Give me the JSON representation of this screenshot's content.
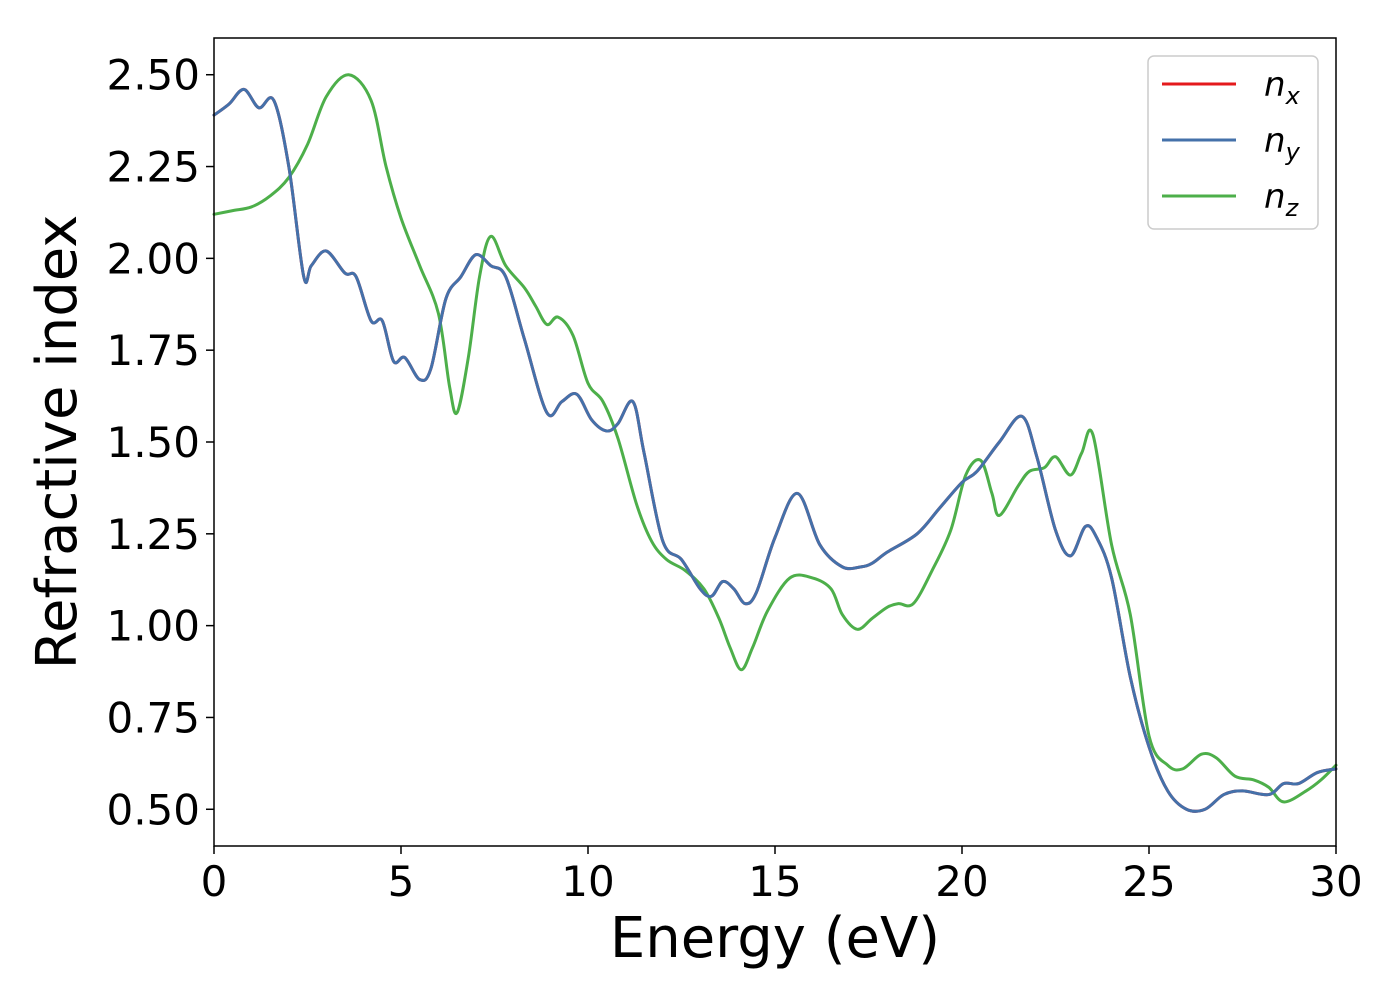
{
  "chart_data": {
    "type": "line",
    "xlabel": "Energy (eV)",
    "ylabel": "Refractive index",
    "xlim": [
      0,
      30
    ],
    "ylim": [
      0.4,
      2.6
    ],
    "xticks": [
      0,
      5,
      10,
      15,
      20,
      25,
      30
    ],
    "xtick_labels": [
      "0",
      "5",
      "10",
      "15",
      "20",
      "25",
      "30"
    ],
    "yticks": [
      0.5,
      0.75,
      1.0,
      1.25,
      1.5,
      1.75,
      2.0,
      2.25,
      2.5
    ],
    "ytick_labels": [
      "0.50",
      "0.75",
      "1.00",
      "1.25",
      "1.50",
      "1.75",
      "2.00",
      "2.25",
      "2.50"
    ],
    "grid": false,
    "legend_position": "top-right",
    "series": [
      {
        "name": "n_x",
        "legend_main": "n",
        "legend_sub": "x",
        "color": "#e41a1c",
        "points": [
          [
            0,
            2.39
          ],
          [
            0.4,
            2.42
          ],
          [
            0.8,
            2.46
          ],
          [
            1.2,
            2.41
          ],
          [
            1.6,
            2.43
          ],
          [
            2.0,
            2.25
          ],
          [
            2.4,
            1.95
          ],
          [
            2.6,
            1.98
          ],
          [
            3.0,
            2.02
          ],
          [
            3.5,
            1.96
          ],
          [
            3.8,
            1.95
          ],
          [
            4.2,
            1.83
          ],
          [
            4.5,
            1.83
          ],
          [
            4.8,
            1.72
          ],
          [
            5.1,
            1.73
          ],
          [
            5.5,
            1.67
          ],
          [
            5.8,
            1.7
          ],
          [
            6.2,
            1.89
          ],
          [
            6.6,
            1.95
          ],
          [
            7.0,
            2.01
          ],
          [
            7.4,
            1.98
          ],
          [
            7.8,
            1.95
          ],
          [
            8.3,
            1.78
          ],
          [
            8.9,
            1.58
          ],
          [
            9.3,
            1.61
          ],
          [
            9.7,
            1.63
          ],
          [
            10.1,
            1.56
          ],
          [
            10.5,
            1.53
          ],
          [
            10.8,
            1.55
          ],
          [
            11.2,
            1.61
          ],
          [
            11.5,
            1.47
          ],
          [
            12.0,
            1.23
          ],
          [
            12.5,
            1.18
          ],
          [
            13.0,
            1.1
          ],
          [
            13.3,
            1.08
          ],
          [
            13.6,
            1.12
          ],
          [
            13.9,
            1.1
          ],
          [
            14.2,
            1.06
          ],
          [
            14.5,
            1.09
          ],
          [
            15.0,
            1.24
          ],
          [
            15.6,
            1.36
          ],
          [
            16.2,
            1.22
          ],
          [
            16.8,
            1.16
          ],
          [
            17.3,
            1.16
          ],
          [
            17.6,
            1.17
          ],
          [
            18.0,
            1.2
          ],
          [
            18.8,
            1.25
          ],
          [
            19.4,
            1.32
          ],
          [
            20.0,
            1.39
          ],
          [
            20.4,
            1.42
          ],
          [
            21.0,
            1.5
          ],
          [
            21.6,
            1.57
          ],
          [
            22.0,
            1.46
          ],
          [
            22.5,
            1.26
          ],
          [
            22.9,
            1.19
          ],
          [
            23.3,
            1.27
          ],
          [
            23.6,
            1.24
          ],
          [
            24.0,
            1.13
          ],
          [
            24.5,
            0.86
          ],
          [
            25.0,
            0.67
          ],
          [
            25.5,
            0.55
          ],
          [
            26.0,
            0.5
          ],
          [
            26.5,
            0.5
          ],
          [
            27.0,
            0.54
          ],
          [
            27.5,
            0.55
          ],
          [
            28.2,
            0.54
          ],
          [
            28.6,
            0.57
          ],
          [
            29.0,
            0.57
          ],
          [
            29.5,
            0.6
          ],
          [
            30.0,
            0.61
          ]
        ]
      },
      {
        "name": "n_y",
        "legend_main": "n",
        "legend_sub": "y",
        "color": "#4471aa",
        "points": [
          [
            0,
            2.39
          ],
          [
            0.4,
            2.42
          ],
          [
            0.8,
            2.46
          ],
          [
            1.2,
            2.41
          ],
          [
            1.6,
            2.43
          ],
          [
            2.0,
            2.25
          ],
          [
            2.4,
            1.95
          ],
          [
            2.6,
            1.98
          ],
          [
            3.0,
            2.02
          ],
          [
            3.5,
            1.96
          ],
          [
            3.8,
            1.95
          ],
          [
            4.2,
            1.83
          ],
          [
            4.5,
            1.83
          ],
          [
            4.8,
            1.72
          ],
          [
            5.1,
            1.73
          ],
          [
            5.5,
            1.67
          ],
          [
            5.8,
            1.7
          ],
          [
            6.2,
            1.89
          ],
          [
            6.6,
            1.95
          ],
          [
            7.0,
            2.01
          ],
          [
            7.4,
            1.98
          ],
          [
            7.8,
            1.95
          ],
          [
            8.3,
            1.78
          ],
          [
            8.9,
            1.58
          ],
          [
            9.3,
            1.61
          ],
          [
            9.7,
            1.63
          ],
          [
            10.1,
            1.56
          ],
          [
            10.5,
            1.53
          ],
          [
            10.8,
            1.55
          ],
          [
            11.2,
            1.61
          ],
          [
            11.5,
            1.47
          ],
          [
            12.0,
            1.23
          ],
          [
            12.5,
            1.18
          ],
          [
            13.0,
            1.1
          ],
          [
            13.3,
            1.08
          ],
          [
            13.6,
            1.12
          ],
          [
            13.9,
            1.1
          ],
          [
            14.2,
            1.06
          ],
          [
            14.5,
            1.09
          ],
          [
            15.0,
            1.24
          ],
          [
            15.6,
            1.36
          ],
          [
            16.2,
            1.22
          ],
          [
            16.8,
            1.16
          ],
          [
            17.3,
            1.16
          ],
          [
            17.6,
            1.17
          ],
          [
            18.0,
            1.2
          ],
          [
            18.8,
            1.25
          ],
          [
            19.4,
            1.32
          ],
          [
            20.0,
            1.39
          ],
          [
            20.4,
            1.42
          ],
          [
            21.0,
            1.5
          ],
          [
            21.6,
            1.57
          ],
          [
            22.0,
            1.46
          ],
          [
            22.5,
            1.26
          ],
          [
            22.9,
            1.19
          ],
          [
            23.3,
            1.27
          ],
          [
            23.6,
            1.24
          ],
          [
            24.0,
            1.13
          ],
          [
            24.5,
            0.86
          ],
          [
            25.0,
            0.67
          ],
          [
            25.5,
            0.55
          ],
          [
            26.0,
            0.5
          ],
          [
            26.5,
            0.5
          ],
          [
            27.0,
            0.54
          ],
          [
            27.5,
            0.55
          ],
          [
            28.2,
            0.54
          ],
          [
            28.6,
            0.57
          ],
          [
            29.0,
            0.57
          ],
          [
            29.5,
            0.6
          ],
          [
            30.0,
            0.61
          ]
        ]
      },
      {
        "name": "n_z",
        "legend_main": "n",
        "legend_sub": "z",
        "color": "#4daf4a",
        "points": [
          [
            0,
            2.12
          ],
          [
            0.5,
            2.13
          ],
          [
            1.0,
            2.14
          ],
          [
            1.5,
            2.17
          ],
          [
            2.0,
            2.22
          ],
          [
            2.5,
            2.31
          ],
          [
            3.0,
            2.44
          ],
          [
            3.6,
            2.5
          ],
          [
            4.2,
            2.43
          ],
          [
            4.6,
            2.25
          ],
          [
            5.0,
            2.11
          ],
          [
            5.5,
            1.98
          ],
          [
            6.0,
            1.85
          ],
          [
            6.3,
            1.65
          ],
          [
            6.5,
            1.58
          ],
          [
            6.8,
            1.73
          ],
          [
            7.1,
            1.95
          ],
          [
            7.4,
            2.06
          ],
          [
            7.8,
            1.98
          ],
          [
            8.3,
            1.92
          ],
          [
            8.6,
            1.87
          ],
          [
            8.9,
            1.82
          ],
          [
            9.2,
            1.84
          ],
          [
            9.6,
            1.79
          ],
          [
            10.0,
            1.66
          ],
          [
            10.4,
            1.61
          ],
          [
            10.8,
            1.51
          ],
          [
            11.3,
            1.33
          ],
          [
            11.7,
            1.23
          ],
          [
            12.1,
            1.18
          ],
          [
            12.6,
            1.15
          ],
          [
            13.1,
            1.1
          ],
          [
            13.5,
            1.02
          ],
          [
            13.8,
            0.94
          ],
          [
            14.1,
            0.88
          ],
          [
            14.4,
            0.94
          ],
          [
            14.8,
            1.04
          ],
          [
            15.4,
            1.13
          ],
          [
            16.0,
            1.13
          ],
          [
            16.5,
            1.1
          ],
          [
            16.8,
            1.03
          ],
          [
            17.2,
            0.99
          ],
          [
            17.6,
            1.02
          ],
          [
            18.0,
            1.05
          ],
          [
            18.3,
            1.06
          ],
          [
            18.7,
            1.06
          ],
          [
            19.2,
            1.15
          ],
          [
            19.7,
            1.26
          ],
          [
            20.1,
            1.41
          ],
          [
            20.5,
            1.45
          ],
          [
            20.8,
            1.36
          ],
          [
            21.0,
            1.3
          ],
          [
            21.5,
            1.38
          ],
          [
            21.8,
            1.42
          ],
          [
            22.2,
            1.43
          ],
          [
            22.5,
            1.46
          ],
          [
            22.9,
            1.41
          ],
          [
            23.2,
            1.47
          ],
          [
            23.5,
            1.52
          ],
          [
            24.0,
            1.22
          ],
          [
            24.5,
            1.03
          ],
          [
            25.0,
            0.7
          ],
          [
            25.5,
            0.62
          ],
          [
            25.9,
            0.61
          ],
          [
            26.4,
            0.65
          ],
          [
            26.8,
            0.64
          ],
          [
            27.3,
            0.59
          ],
          [
            27.8,
            0.58
          ],
          [
            28.2,
            0.56
          ],
          [
            28.6,
            0.52
          ],
          [
            29.2,
            0.55
          ],
          [
            29.6,
            0.58
          ],
          [
            30.0,
            0.62
          ]
        ]
      }
    ]
  }
}
